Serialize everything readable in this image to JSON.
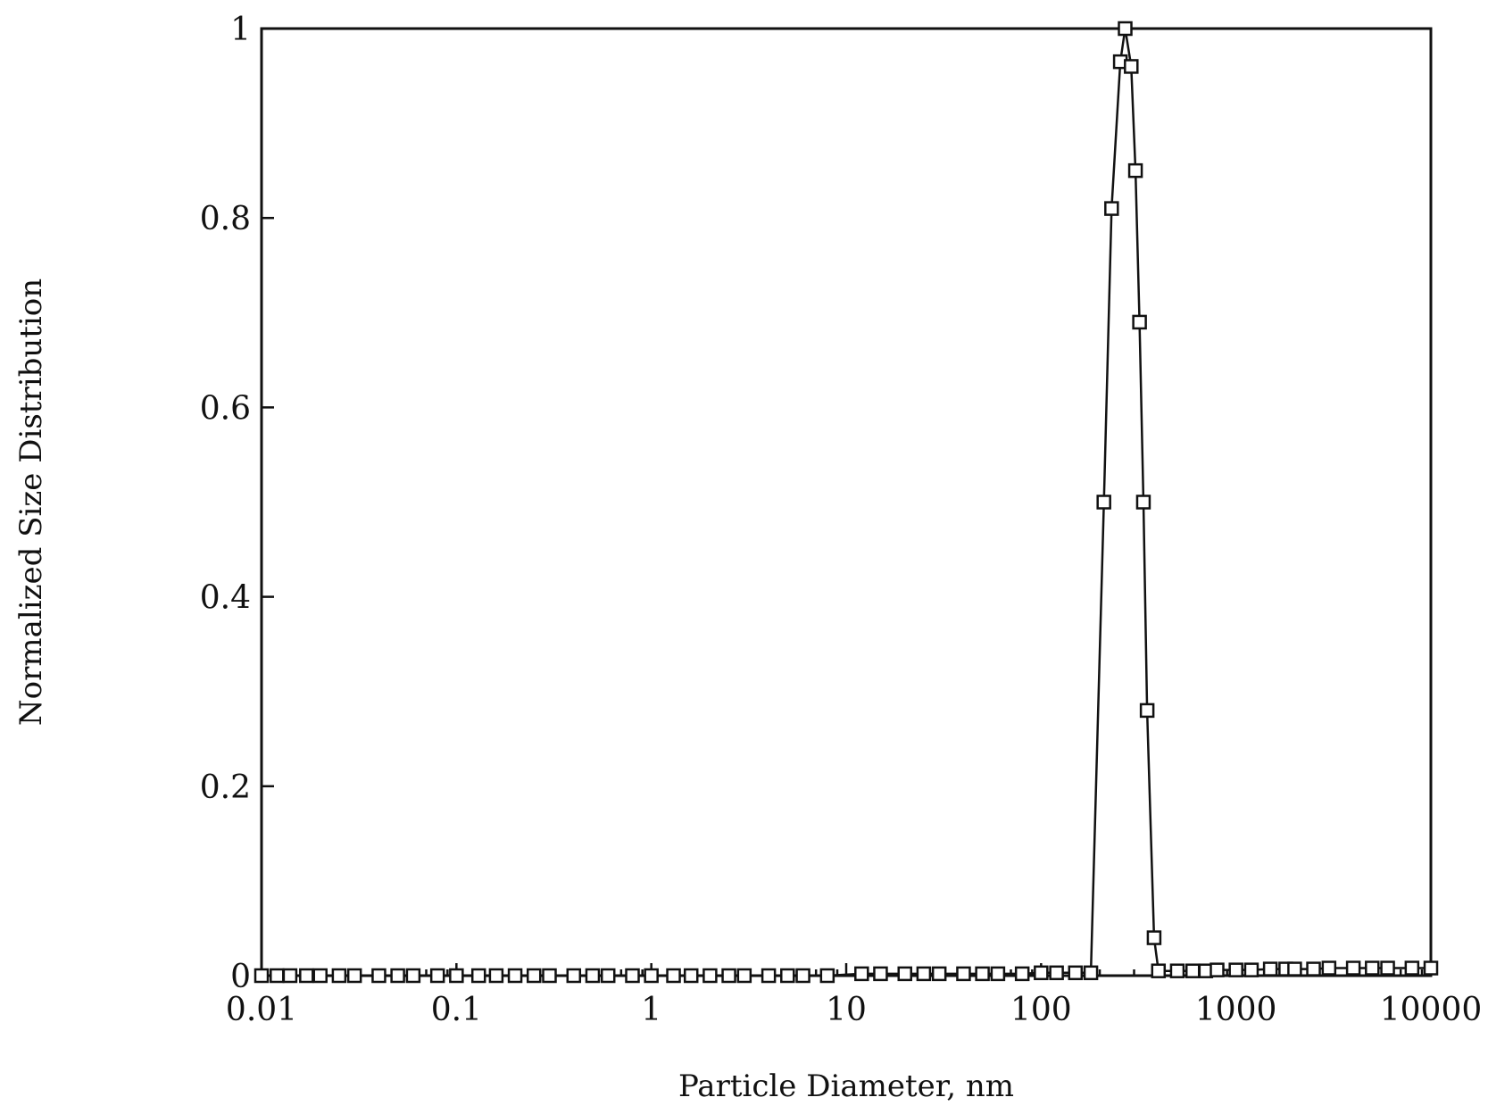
{
  "chart_data": {
    "type": "scatter",
    "title": "",
    "xlabel": "Particle Diameter, nm",
    "ylabel": "Normalized Size Distribution",
    "x_scale": "log",
    "xlim": [
      0.01,
      10000
    ],
    "ylim": [
      0,
      1
    ],
    "x_ticks": [
      {
        "value": 0.01,
        "label": "0.01"
      },
      {
        "value": 0.1,
        "label": "0.1"
      },
      {
        "value": 1,
        "label": "1"
      },
      {
        "value": 10,
        "label": "10"
      },
      {
        "value": 100,
        "label": "100"
      },
      {
        "value": 1000,
        "label": "1000"
      },
      {
        "value": 10000,
        "label": "10000"
      }
    ],
    "y_ticks": [
      {
        "value": 0,
        "label": "0"
      },
      {
        "value": 0.2,
        "label": "0.2"
      },
      {
        "value": 0.4,
        "label": "0.4"
      },
      {
        "value": 0.6,
        "label": "0.6"
      },
      {
        "value": 0.8,
        "label": "0.8"
      },
      {
        "value": 1,
        "label": "1"
      }
    ],
    "grid": false,
    "marker": "open-square",
    "series": [
      {
        "x": [
          0.01,
          0.012,
          0.014,
          0.017,
          0.02,
          0.025,
          0.03,
          0.04,
          0.05,
          0.06,
          0.08,
          0.1,
          0.13,
          0.16,
          0.2,
          0.25,
          0.3,
          0.4,
          0.5,
          0.6,
          0.8,
          1,
          1.3,
          1.6,
          2,
          2.5,
          3,
          4,
          5,
          6,
          8,
          12,
          15,
          20,
          25,
          30,
          40,
          50,
          60,
          80,
          100,
          120,
          150,
          180,
          210,
          230,
          255,
          270,
          290,
          305,
          320,
          335,
          350,
          380,
          400,
          500,
          600,
          700,
          800,
          1000,
          1200,
          1500,
          1800,
          2000,
          2500,
          3000,
          4000,
          5000,
          6000,
          8000,
          10000
        ],
        "y": [
          0,
          0,
          0,
          0,
          0,
          0,
          0,
          0,
          0,
          0,
          0,
          0,
          0,
          0,
          0,
          0,
          0,
          0,
          0,
          0,
          0,
          0,
          0,
          0,
          0,
          0,
          0,
          0,
          0,
          0,
          0,
          0.002,
          0.002,
          0.002,
          0.002,
          0.002,
          0.002,
          0.002,
          0.002,
          0.002,
          0.003,
          0.003,
          0.003,
          0.003,
          0.5,
          0.81,
          0.965,
          1.0,
          0.96,
          0.85,
          0.69,
          0.5,
          0.28,
          0.04,
          0.005,
          0.005,
          0.005,
          0.005,
          0.006,
          0.006,
          0.006,
          0.007,
          0.007,
          0.007,
          0.007,
          0.008,
          0.008,
          0.008,
          0.008,
          0.008,
          0.008
        ]
      }
    ]
  }
}
